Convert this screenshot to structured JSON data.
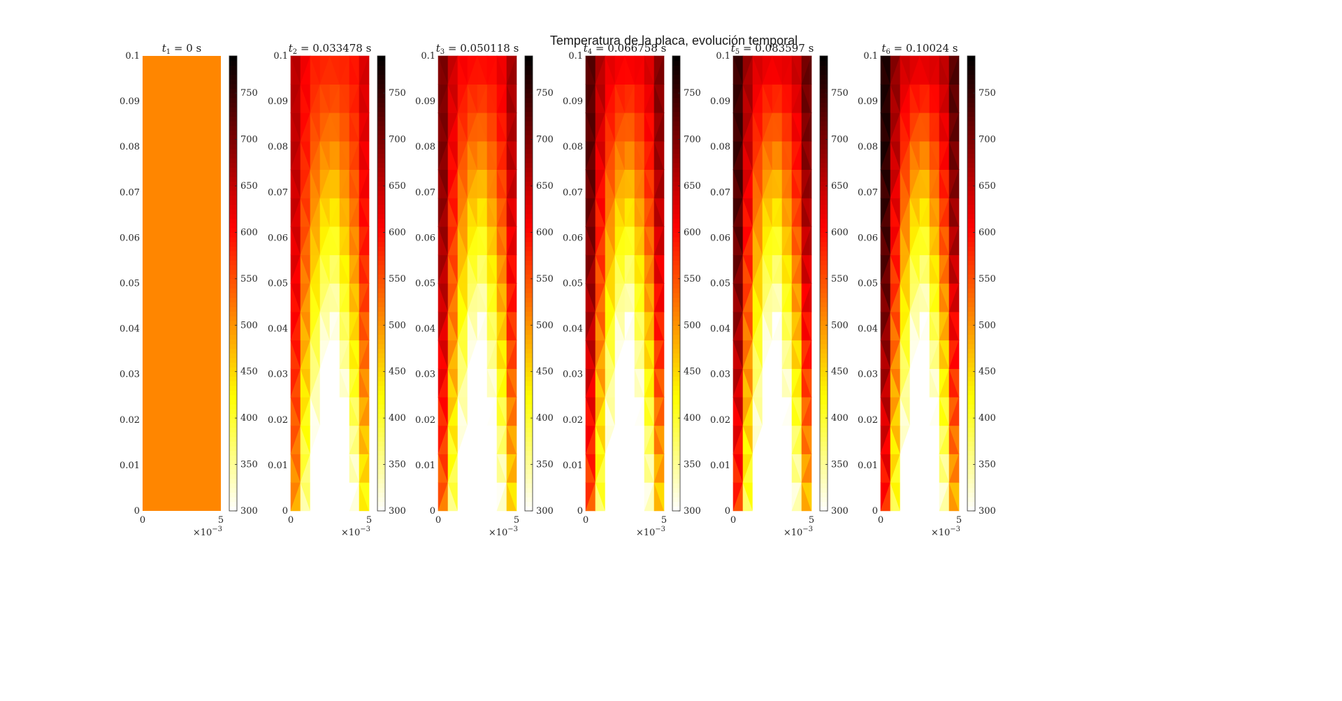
{
  "figure": {
    "title": "Temperatura de la placa, evolución temporal"
  },
  "chart_data": [
    {
      "type": "heatmap",
      "title": "t_1 = 0 s",
      "title_sub": "1",
      "title_value": "0 s",
      "xlim": [
        0,
        0.005
      ],
      "ylim": [
        0,
        0.1
      ],
      "x_ticks": [
        "0",
        "5"
      ],
      "x_exponent": "×10^-3",
      "y_ticks": [
        "0",
        "0.01",
        "0.02",
        "0.03",
        "0.04",
        "0.05",
        "0.06",
        "0.07",
        "0.08",
        "0.09",
        "0.1"
      ],
      "colorbar": {
        "range": [
          300,
          790
        ],
        "ticks": [
          "300",
          "350",
          "400",
          "450",
          "500",
          "550",
          "600",
          "650",
          "700",
          "750"
        ],
        "colormap": "hot (reversed)"
      },
      "uniform_value": 510
    },
    {
      "type": "heatmap",
      "title": "t_2 = 0.033478 s",
      "title_sub": "2",
      "title_value": "0.033478 s",
      "xlim": [
        0,
        0.005
      ],
      "ylim": [
        0,
        0.1
      ],
      "x_ticks": [
        "0",
        "5"
      ],
      "x_exponent": "×10^-3",
      "y_ticks": [
        "0",
        "0.01",
        "0.02",
        "0.03",
        "0.04",
        "0.05",
        "0.06",
        "0.07",
        "0.08",
        "0.09",
        "0.1"
      ],
      "colorbar": {
        "range": [
          300,
          790
        ],
        "ticks": [
          "300",
          "350",
          "400",
          "450",
          "500",
          "550",
          "600",
          "650",
          "700",
          "750"
        ],
        "colormap": "hot (reversed)"
      }
    },
    {
      "type": "heatmap",
      "title": "t_3 = 0.050118 s",
      "title_sub": "3",
      "title_value": "0.050118 s",
      "xlim": [
        0,
        0.005
      ],
      "ylim": [
        0,
        0.1
      ],
      "x_ticks": [
        "0",
        "5"
      ],
      "x_exponent": "×10^-3",
      "y_ticks": [
        "0",
        "0.01",
        "0.02",
        "0.03",
        "0.04",
        "0.05",
        "0.06",
        "0.07",
        "0.08",
        "0.09",
        "0.1"
      ],
      "colorbar": {
        "range": [
          300,
          790
        ],
        "ticks": [
          "300",
          "350",
          "400",
          "450",
          "500",
          "550",
          "600",
          "650",
          "700",
          "750"
        ],
        "colormap": "hot (reversed)"
      }
    },
    {
      "type": "heatmap",
      "title": "t_4 = 0.066758 s",
      "title_sub": "4",
      "title_value": "0.066758 s",
      "xlim": [
        0,
        0.005
      ],
      "ylim": [
        0,
        0.1
      ],
      "x_ticks": [
        "0",
        "5"
      ],
      "x_exponent": "×10^-3",
      "y_ticks": [
        "0",
        "0.01",
        "0.02",
        "0.03",
        "0.04",
        "0.05",
        "0.06",
        "0.07",
        "0.08",
        "0.09",
        "0.1"
      ],
      "colorbar": {
        "range": [
          300,
          790
        ],
        "ticks": [
          "300",
          "350",
          "400",
          "450",
          "500",
          "550",
          "600",
          "650",
          "700",
          "750"
        ],
        "colormap": "hot (reversed)"
      }
    },
    {
      "type": "heatmap",
      "title": "t_5 = 0.083597 s",
      "title_sub": "5",
      "title_value": "0.083597 s",
      "xlim": [
        0,
        0.005
      ],
      "ylim": [
        0,
        0.1
      ],
      "x_ticks": [
        "0",
        "5"
      ],
      "x_exponent": "×10^-3",
      "y_ticks": [
        "0",
        "0.01",
        "0.02",
        "0.03",
        "0.04",
        "0.05",
        "0.06",
        "0.07",
        "0.08",
        "0.09",
        "0.1"
      ],
      "colorbar": {
        "range": [
          300,
          790
        ],
        "ticks": [
          "300",
          "350",
          "400",
          "450",
          "500",
          "550",
          "600",
          "650",
          "700",
          "750"
        ],
        "colormap": "hot (reversed)"
      }
    },
    {
      "type": "heatmap",
      "title": "t_6 = 0.10024 s",
      "title_sub": "6",
      "title_value": "0.10024 s",
      "xlim": [
        0,
        0.005
      ],
      "ylim": [
        0,
        0.1
      ],
      "x_ticks": [
        "0",
        "5"
      ],
      "x_exponent": "×10^-3",
      "y_ticks": [
        "0",
        "0.01",
        "0.02",
        "0.03",
        "0.04",
        "0.05",
        "0.06",
        "0.07",
        "0.08",
        "0.09",
        "0.1"
      ],
      "colorbar": {
        "range": [
          300,
          790
        ],
        "ticks": [
          "300",
          "350",
          "400",
          "450",
          "500",
          "550",
          "600",
          "650",
          "700",
          "750"
        ],
        "colormap": "hot (reversed)"
      }
    }
  ]
}
